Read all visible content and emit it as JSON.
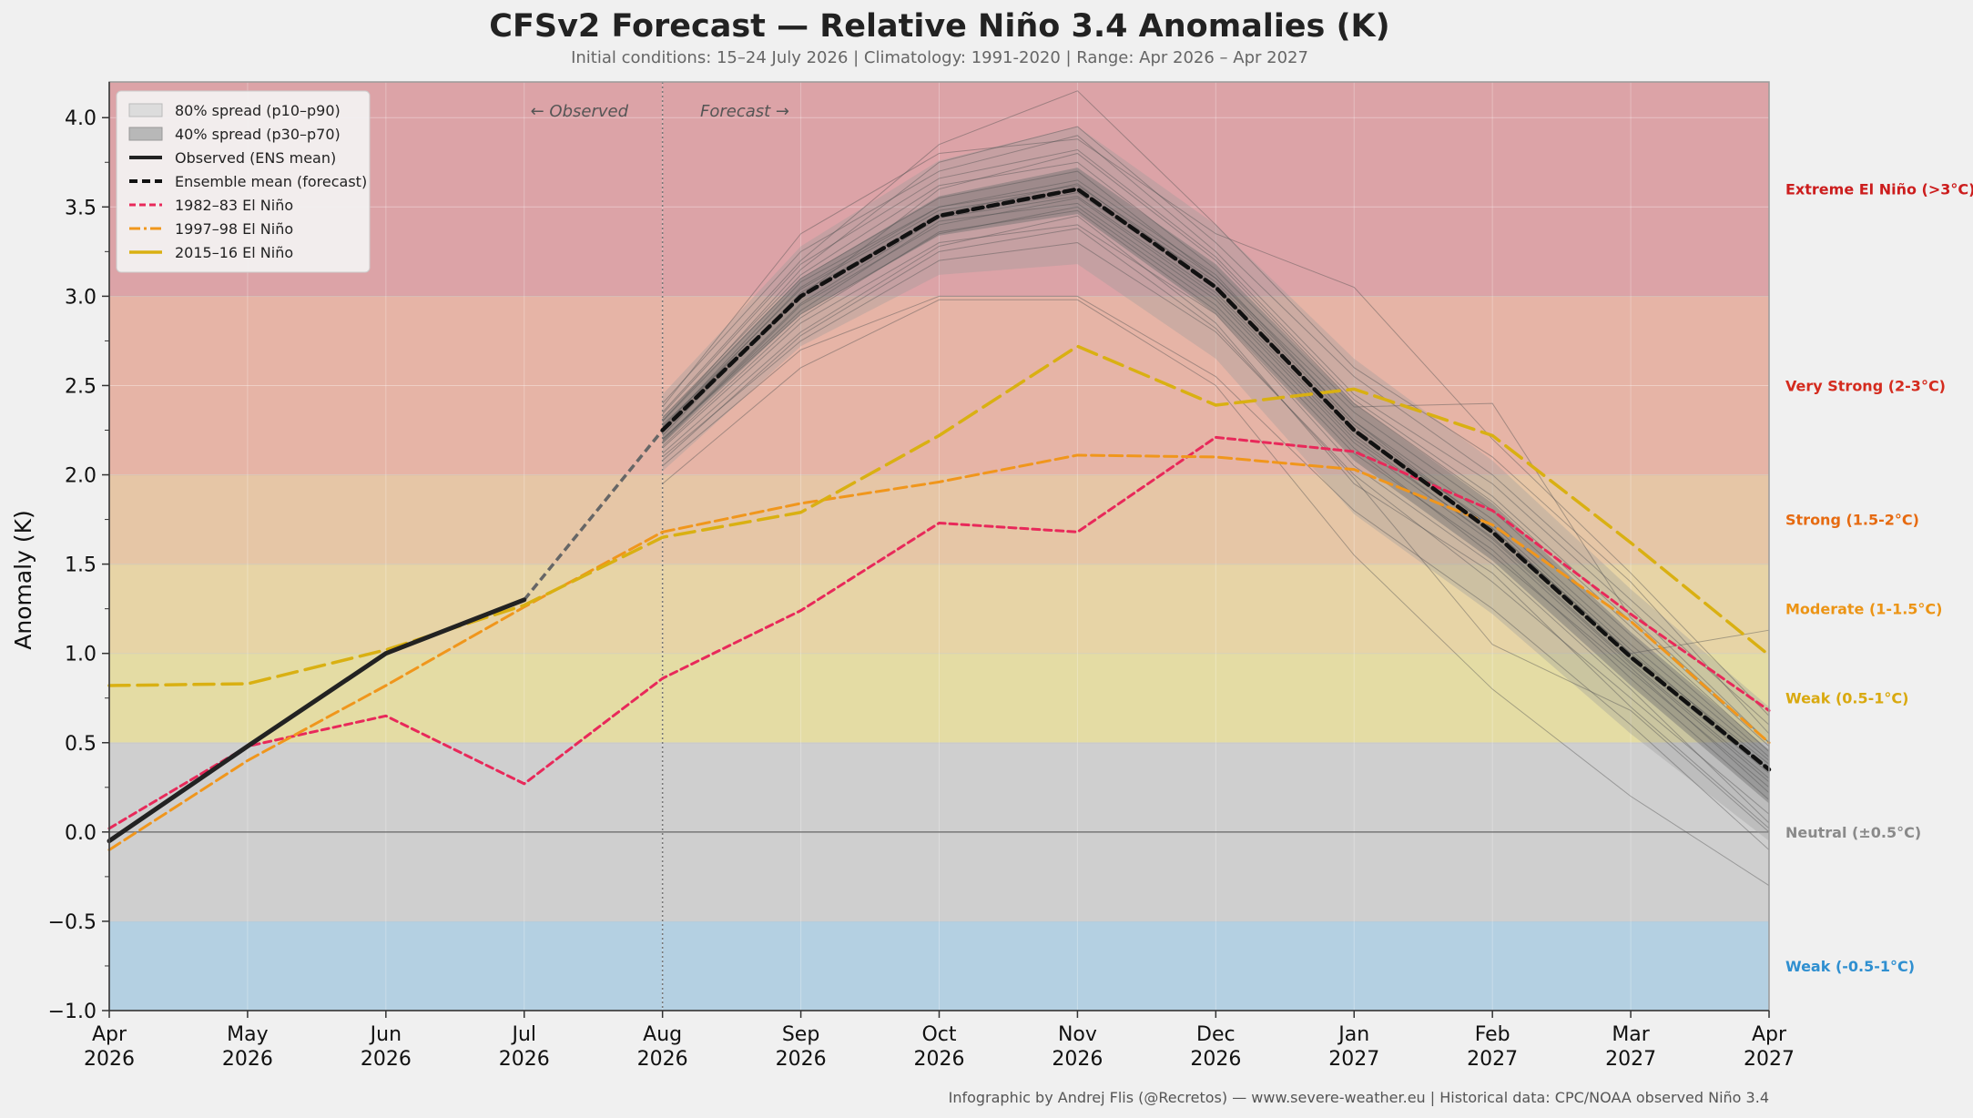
{
  "chart_data": {
    "type": "line",
    "title": "CFSv2 Forecast — Relative Niño 3.4 Anomalies (K)",
    "subtitle": "Initial conditions: 15–24 July 2026  |  Climatology: 1991-2020  |  Range: Apr 2026 – Apr 2027",
    "ylabel": "Anomaly (K)",
    "xlabel": "",
    "ylim": [
      -1.0,
      4.2
    ],
    "yticks": [
      -1.0,
      -0.5,
      0.0,
      0.5,
      1.0,
      1.5,
      2.0,
      2.5,
      3.0,
      3.5,
      4.0
    ],
    "ytick_labels": [
      "−1.0",
      "−0.5",
      "0.0",
      "0.5",
      "1.0",
      "1.5",
      "2.0",
      "2.5",
      "3.0",
      "3.5",
      "4.0"
    ],
    "x_labels": [
      [
        "Apr",
        "2026"
      ],
      [
        "May",
        "2026"
      ],
      [
        "Jun",
        "2026"
      ],
      [
        "Jul",
        "2026"
      ],
      [
        "Aug",
        "2026"
      ],
      [
        "Sep",
        "2026"
      ],
      [
        "Oct",
        "2026"
      ],
      [
        "Nov",
        "2026"
      ],
      [
        "Dec",
        "2026"
      ],
      [
        "Jan",
        "2027"
      ],
      [
        "Feb",
        "2027"
      ],
      [
        "Mar",
        "2027"
      ],
      [
        "Apr",
        "2027"
      ]
    ],
    "forecast_start_month": "Aug 2026",
    "annotations": {
      "observed": "← Observed",
      "forecast": "Forecast →"
    },
    "categories_bands": [
      {
        "label": "Extreme El Niño (>3°C)",
        "from": 3.0,
        "to": 4.2,
        "fill": "#dca3a7",
        "label_color": "#cc1d1d",
        "label_y": 3.6
      },
      {
        "label": "Very Strong (2-3°C)",
        "from": 2.0,
        "to": 3.0,
        "fill": "#e6b4a6",
        "label_color": "#d42b1e",
        "label_y": 2.5
      },
      {
        "label": "Strong (1.5-2°C)",
        "from": 1.5,
        "to": 2.0,
        "fill": "#e6c6a6",
        "label_color": "#e66a10",
        "label_y": 1.75
      },
      {
        "label": "Moderate (1-1.5°C)",
        "from": 1.0,
        "to": 1.5,
        "fill": "#e7d4a6",
        "label_color": "#ec9415",
        "label_y": 1.25
      },
      {
        "label": "Weak (0.5-1°C)",
        "from": 0.5,
        "to": 1.0,
        "fill": "#e4dca4",
        "label_color": "#d9a90f",
        "label_y": 0.75
      },
      {
        "label": "Neutral (±0.5°C)",
        "from": -0.5,
        "to": 0.5,
        "fill": "#cfcfcf",
        "label_color": "#8a8a8a",
        "label_y": 0.0
      },
      {
        "label": "Weak (-0.5-1°C)",
        "from": -1.0,
        "to": -0.5,
        "fill": "#b4d0e2",
        "label_color": "#2f8fd0",
        "label_y": -0.75
      }
    ],
    "legend_position": "top-left",
    "legend": {
      "spread80": "80% spread (p10–p90)",
      "spread40": "40% spread (p30–p70)",
      "observed": "Observed (ENS mean)",
      "ensemble": "Ensemble mean (forecast)",
      "y1982": "1982–83 El Niño",
      "y1997": "1997–98 El Niño",
      "y2015": "2015–16 El Niño"
    },
    "series": [
      {
        "name": "Observed (ENS mean)",
        "start_index": 0,
        "values": [
          -0.05,
          0.48,
          1.0,
          1.3
        ],
        "color": "#222222",
        "style": "solid"
      },
      {
        "name": "Ensemble mean (forecast)",
        "start_index": 4,
        "values": [
          2.25,
          3.0,
          3.45,
          3.6,
          3.05,
          2.25,
          1.68,
          0.98,
          0.35
        ],
        "color": "#111111",
        "style": "dash"
      },
      {
        "name": "1982–83 El Niño",
        "start_index": 0,
        "values": [
          0.02,
          0.48,
          0.65,
          0.27,
          0.86,
          1.24,
          1.73,
          1.68,
          2.21,
          2.13,
          1.8,
          1.22,
          0.68
        ],
        "color": "#e8295a",
        "style": "dash"
      },
      {
        "name": "1997–98 El Niño",
        "start_index": 0,
        "values": [
          -0.1,
          0.4,
          0.82,
          1.26,
          1.68,
          1.84,
          1.96,
          2.11,
          2.1,
          2.03,
          1.72,
          1.18,
          0.5
        ],
        "color": "#f0961c",
        "style": "dash"
      },
      {
        "name": "2015–16 El Niño",
        "start_index": 0,
        "values": [
          0.82,
          0.83,
          1.02,
          1.27,
          1.65,
          1.79,
          2.22,
          2.72,
          2.39,
          2.48,
          2.22,
          1.62,
          0.99
        ],
        "color": "#d9b012",
        "style": "longdash"
      }
    ],
    "bridge": {
      "start_index": 3,
      "values": [
        1.3,
        2.25
      ],
      "color": "#666666",
      "style": "dash"
    },
    "spread": {
      "start_index": 4,
      "p10": [
        2.02,
        2.72,
        3.12,
        3.18,
        2.65,
        1.78,
        1.22,
        0.55,
        -0.05
      ],
      "p30": [
        2.17,
        2.9,
        3.34,
        3.46,
        2.9,
        2.08,
        1.52,
        0.82,
        0.16
      ],
      "p70": [
        2.32,
        3.1,
        3.56,
        3.72,
        3.18,
        2.4,
        1.84,
        1.12,
        0.46
      ],
      "p90": [
        2.45,
        3.28,
        3.76,
        3.95,
        3.4,
        2.65,
        2.08,
        1.36,
        0.7
      ]
    },
    "members": [
      [
        2.25,
        3.05,
        3.5,
        3.62,
        3.1,
        2.3,
        1.7,
        1.0,
        0.38
      ],
      [
        2.3,
        3.15,
        3.75,
        3.95,
        3.3,
        2.55,
        2.0,
        1.3,
        0.6
      ],
      [
        2.2,
        2.9,
        3.35,
        3.5,
        2.95,
        2.15,
        1.55,
        0.9,
        0.25
      ],
      [
        2.1,
        2.75,
        3.2,
        3.3,
        2.8,
        2.0,
        1.4,
        0.75,
        0.1
      ],
      [
        2.35,
        3.2,
        3.85,
        4.15,
        3.4,
        2.6,
        2.1,
        1.4,
        0.55
      ],
      [
        2.15,
        2.85,
        3.3,
        3.4,
        2.9,
        2.05,
        1.5,
        0.8,
        0.05
      ],
      [
        2.28,
        3.0,
        3.6,
        3.8,
        3.2,
        2.4,
        1.85,
        1.15,
        0.45
      ],
      [
        2.05,
        2.7,
        3.0,
        3.0,
        2.55,
        1.8,
        1.25,
        0.6,
        -0.1
      ],
      [
        2.4,
        3.25,
        3.7,
        3.9,
        3.25,
        2.45,
        1.95,
        1.25,
        0.5
      ],
      [
        2.18,
        2.95,
        3.4,
        3.55,
        3.0,
        2.2,
        1.65,
        0.95,
        0.3
      ],
      [
        2.22,
        3.02,
        3.45,
        3.58,
        3.05,
        2.25,
        1.72,
        1.02,
        0.35
      ],
      [
        1.95,
        2.6,
        2.98,
        2.98,
        2.5,
        1.55,
        0.8,
        0.2,
        -0.3
      ],
      [
        2.3,
        3.1,
        3.55,
        3.7,
        3.1,
        2.35,
        1.8,
        1.1,
        0.42
      ],
      [
        2.12,
        2.8,
        3.28,
        3.45,
        2.85,
        1.95,
        1.45,
        0.7,
        0.02
      ],
      [
        2.38,
        3.35,
        3.8,
        3.88,
        3.35,
        3.05,
        2.2,
        1.45,
        0.65
      ],
      [
        2.26,
        3.08,
        3.5,
        3.65,
        3.12,
        2.3,
        1.75,
        1.05,
        0.4
      ],
      [
        2.2,
        2.92,
        3.42,
        3.52,
        2.98,
        2.18,
        1.62,
        0.92,
        0.22
      ],
      [
        2.32,
        3.12,
        3.62,
        3.75,
        3.15,
        2.38,
        2.4,
        1.2,
        0.5
      ],
      [
        2.08,
        2.78,
        3.25,
        3.38,
        2.82,
        1.98,
        1.05,
        0.68,
        0.0
      ],
      [
        2.27,
        3.04,
        3.48,
        3.6,
        3.08,
        2.28,
        1.7,
        1.0,
        1.13
      ],
      [
        2.24,
        3.0,
        3.46,
        3.63,
        3.06,
        2.24,
        1.67,
        0.97,
        0.33
      ],
      [
        2.16,
        2.88,
        3.36,
        3.48,
        2.92,
        2.12,
        1.58,
        0.86,
        0.18
      ],
      [
        2.34,
        3.18,
        3.66,
        3.82,
        3.22,
        2.42,
        1.88,
        1.18,
        0.48
      ],
      [
        2.19,
        2.96,
        3.44,
        3.56,
        3.02,
        2.22,
        1.64,
        0.94,
        0.28
      ]
    ]
  },
  "footer": "Infographic by Andrej Flis (@Recretos) — www.severe-weather.eu  |  Historical data: CPC/NOAA observed Niño 3.4"
}
